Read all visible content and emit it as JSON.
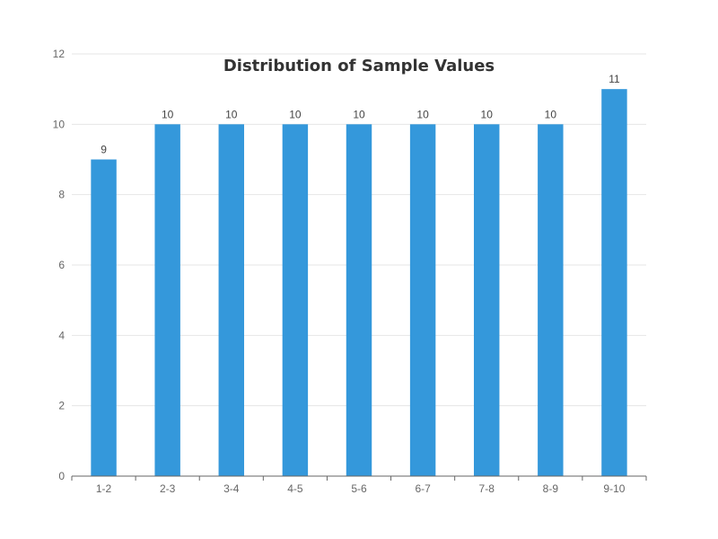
{
  "chart_data": {
    "type": "bar",
    "title": "Distribution of Sample Values",
    "xlabel": "",
    "ylabel": "",
    "categories": [
      "1-2",
      "2-3",
      "3-4",
      "4-5",
      "5-6",
      "6-7",
      "7-8",
      "8-9",
      "9-10"
    ],
    "values": [
      9,
      10,
      10,
      10,
      10,
      10,
      10,
      10,
      11
    ],
    "ylim": [
      0,
      12
    ],
    "yticks": [
      0,
      2,
      4,
      6,
      8,
      10,
      12
    ],
    "grid": true,
    "legend": "none",
    "bar_color": "#3498db",
    "show_data_labels": true
  }
}
